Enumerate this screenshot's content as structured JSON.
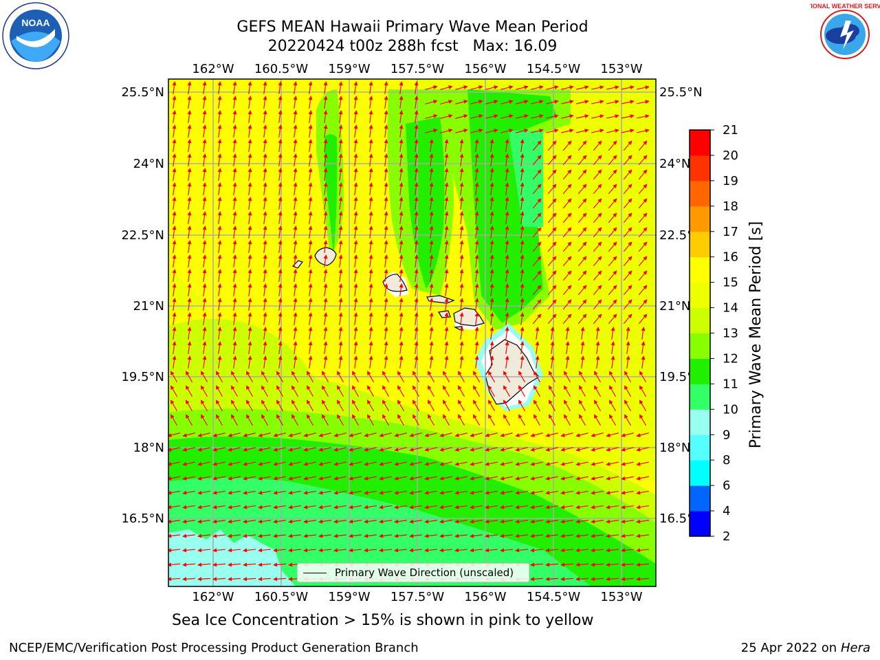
{
  "header": {
    "title": "GEFS MEAN Hawaii Primary Wave Mean Period",
    "subtitle": "20220424 t00z 288h fcst   Max: 16.09"
  },
  "logos": {
    "noaa_text": "NOAA",
    "nws_text": "NATIONAL WEATHER SERVICE"
  },
  "map": {
    "lon_ticks": [
      "162°W",
      "160.5°W",
      "159°W",
      "157.5°W",
      "156°W",
      "154.5°W",
      "153°W"
    ],
    "lat_ticks": [
      "25.5°N",
      "24°N",
      "22.5°N",
      "21°N",
      "19.5°N",
      "18°N",
      "16.5°N"
    ],
    "legend_label": "Primary Wave Direction (unscaled)",
    "arrow_color": "#ff0000",
    "land_color": "#efeada"
  },
  "colorbar": {
    "label": "Primary Wave Mean Period [s]",
    "ticks": [
      "2",
      "4",
      "6",
      "8",
      "9",
      "10",
      "11",
      "12",
      "13",
      "14",
      "15",
      "16",
      "17",
      "18",
      "19",
      "20",
      "21"
    ],
    "colors": [
      "#0000ff",
      "#0066ff",
      "#00ffff",
      "#55ffff",
      "#99ffee",
      "#33ff66",
      "#22ee00",
      "#88ff00",
      "#ccff00",
      "#eeff00",
      "#ffff00",
      "#ffcc00",
      "#ff9900",
      "#ff6600",
      "#ff3300",
      "#ff0000"
    ]
  },
  "footer": {
    "caption": "Sea Ice Concentration > 15% is shown in pink to yellow",
    "credit": "NCEP/EMC/Verification Post Processing Product Generation Branch",
    "date": "25 Apr 2022 on",
    "system": "Hera"
  }
}
